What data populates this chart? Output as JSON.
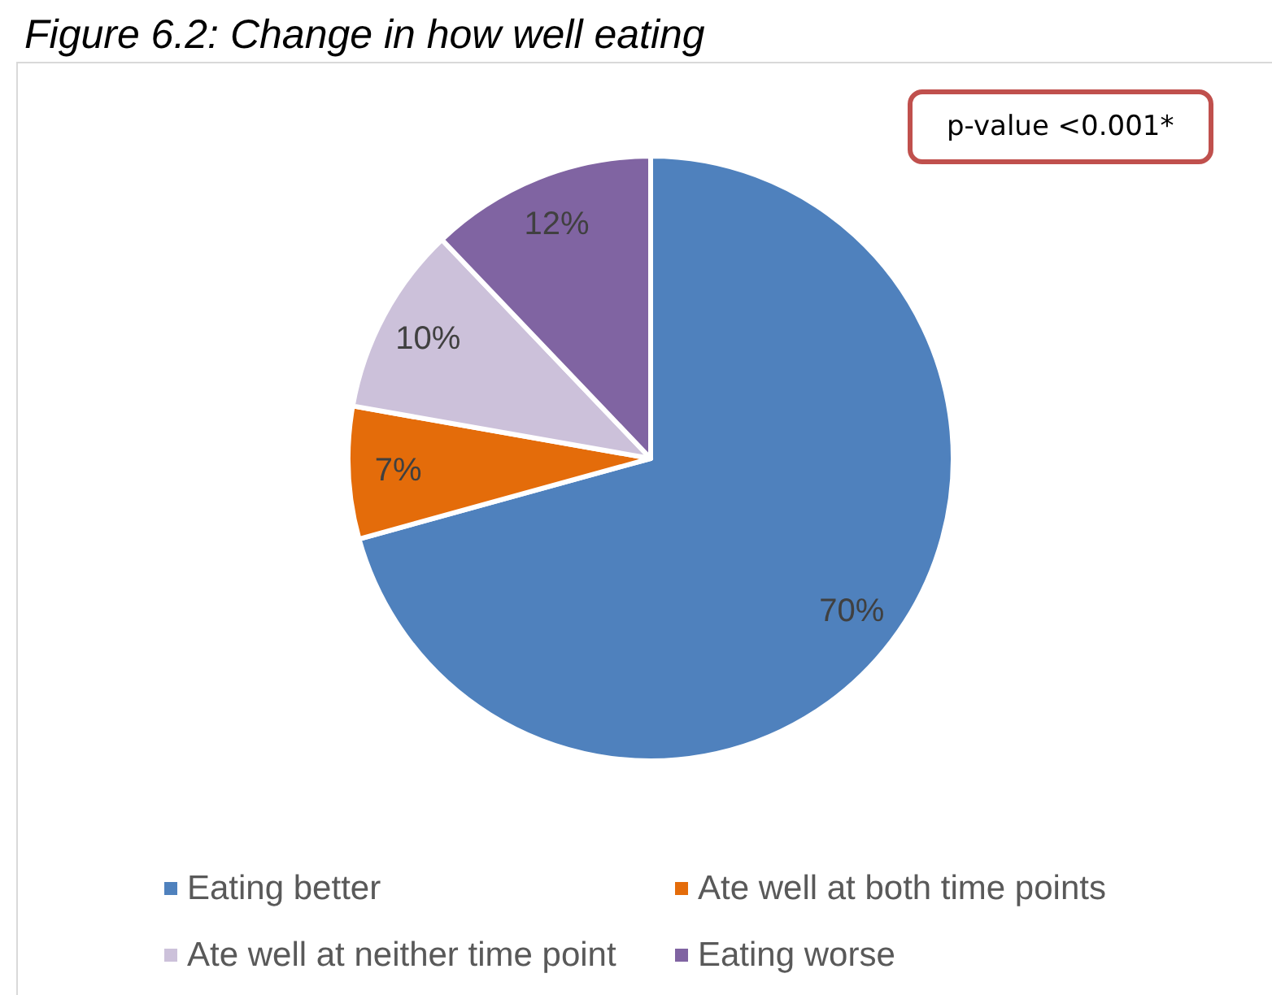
{
  "chart_data": {
    "type": "pie",
    "title": "Figure 6.2: Change in how well eating",
    "categories": [
      "Eating better",
      "Ate well at both time points",
      "Ate well at neither time point",
      "Eating worse"
    ],
    "values": [
      70,
      7,
      10,
      12
    ],
    "colors": [
      "#4f81bd",
      "#e46c0a",
      "#ccc1da",
      "#8064a2"
    ],
    "value_labels": [
      "70%",
      "7%",
      "10%",
      "12%"
    ],
    "legend": "bottom",
    "annotations": [
      "p-value <0.001*"
    ]
  }
}
